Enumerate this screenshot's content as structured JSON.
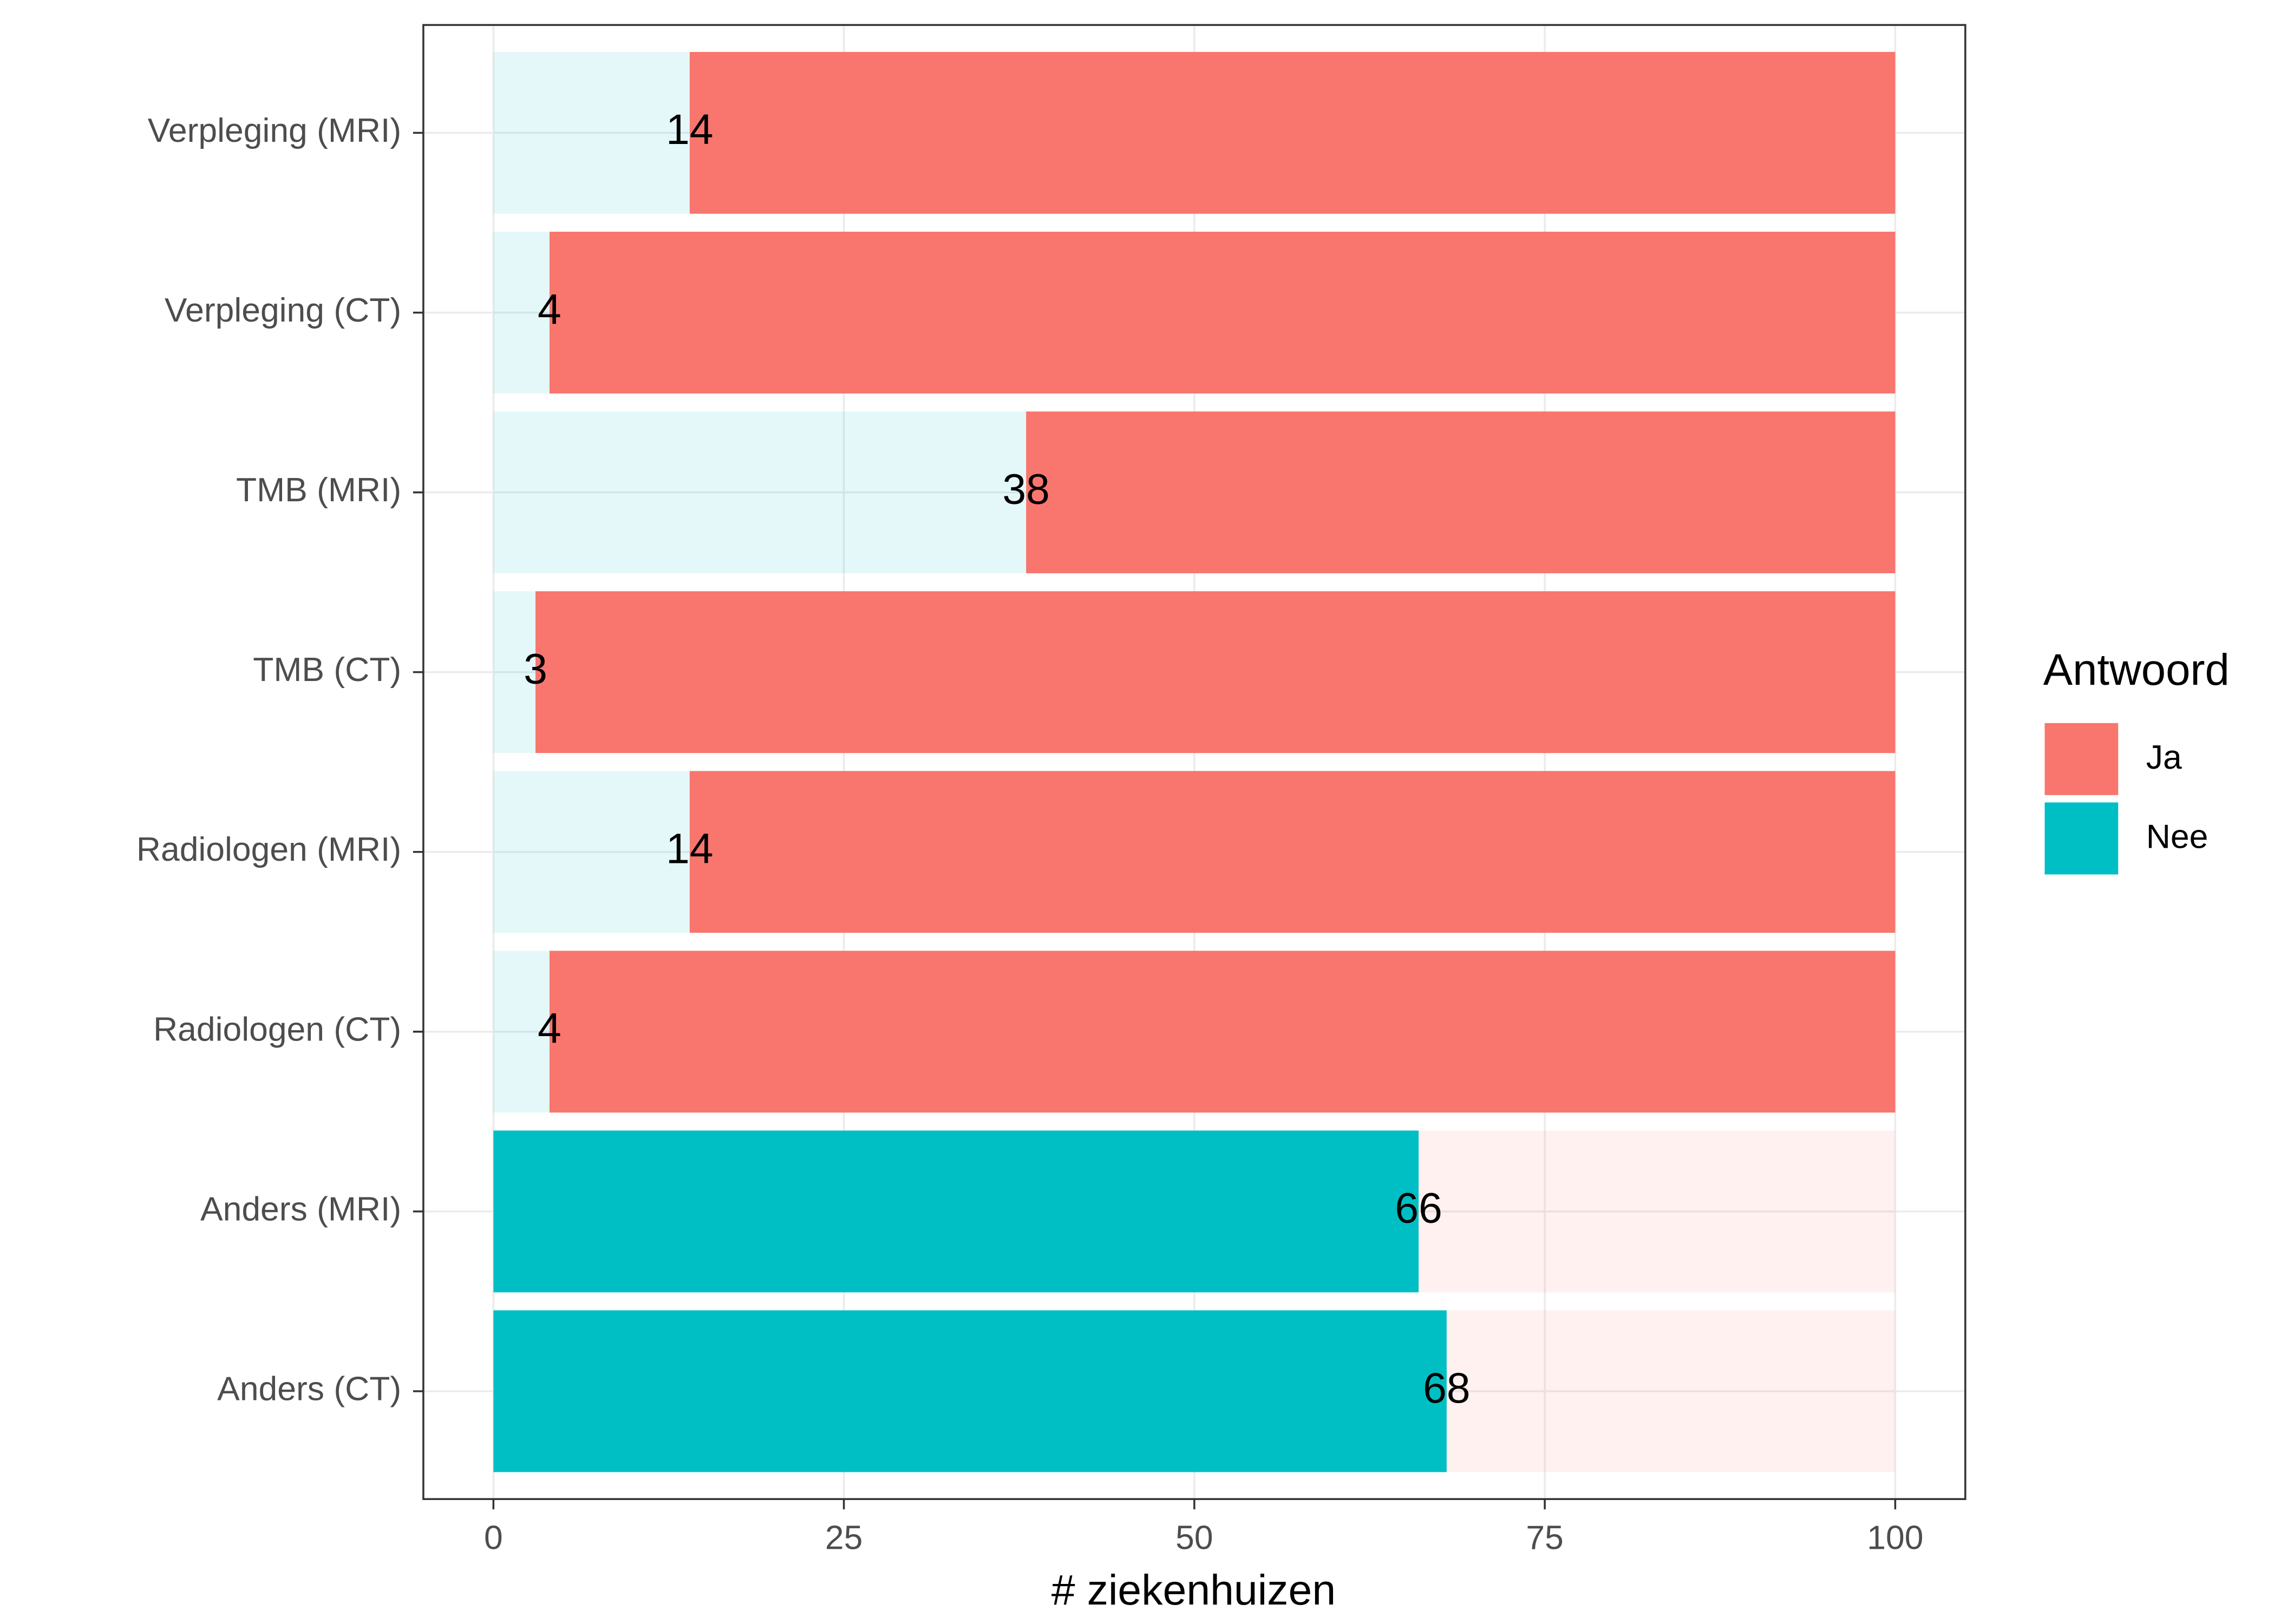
{
  "chart_data": {
    "type": "bar",
    "orientation": "horizontal",
    "stacked": true,
    "x_label": "# ziekenhuizen",
    "categories": [
      "Anders (CT)",
      "Anders (MRI)",
      "Radiologen (CT)",
      "Radiologen (MRI)",
      "TMB (CT)",
      "TMB (MRI)",
      "Verpleging (CT)",
      "Verpleging (MRI)"
    ],
    "series": [
      {
        "name": "Nee",
        "color": "#00BFC4",
        "values": [
          68,
          66,
          4,
          14,
          3,
          38,
          4,
          14
        ],
        "opacity": [
          1,
          1,
          0.1,
          0.1,
          0.1,
          0.1,
          0.1,
          0.1
        ],
        "labeled": true
      },
      {
        "name": "Ja",
        "color": "#F8766D",
        "values": [
          32,
          34,
          96,
          86,
          97,
          62,
          96,
          86
        ],
        "opacity": [
          0.1,
          0.1,
          1,
          1,
          1,
          1,
          1,
          1
        ],
        "labeled": false
      }
    ],
    "legend_title": "Antwoord",
    "legend_order": [
      1,
      0
    ],
    "xlim": [
      -5,
      105
    ],
    "xticks": [
      0,
      25,
      50,
      75,
      100
    ],
    "grid": true
  }
}
